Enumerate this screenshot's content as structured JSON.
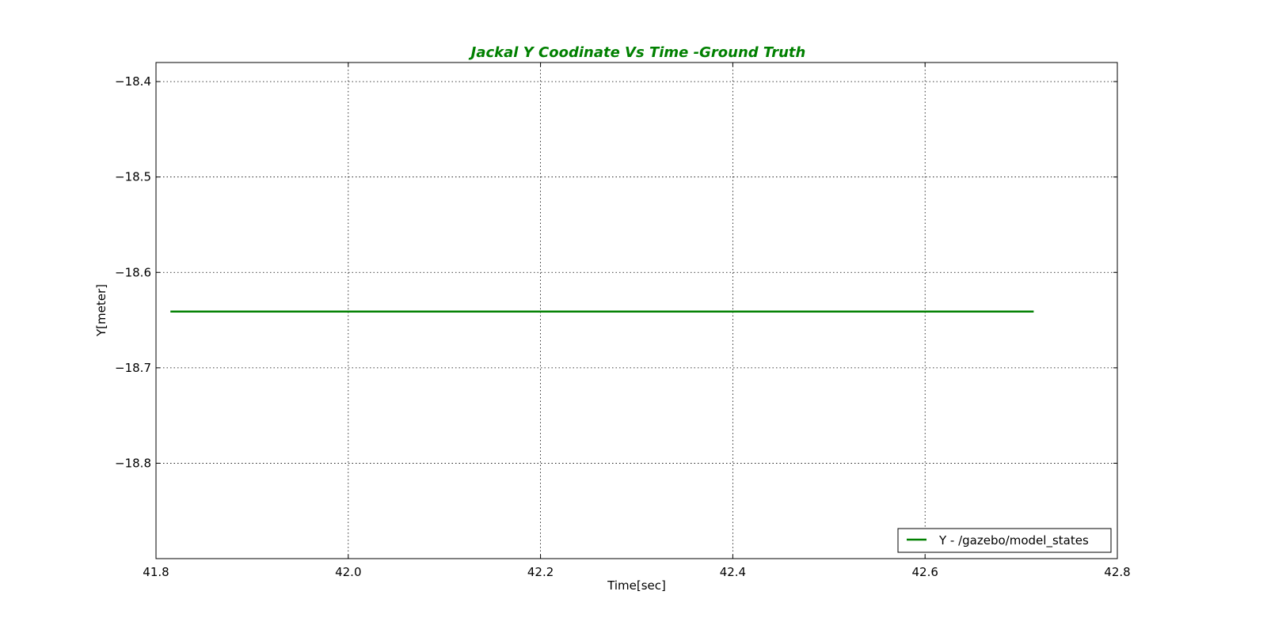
{
  "chart_data": {
    "type": "line",
    "title": "Jackal Y Coodinate Vs Time -Ground Truth",
    "xlabel": "Time[sec]",
    "ylabel": "Y[meter]",
    "xlim": [
      41.8,
      42.8
    ],
    "ylim": [
      -18.9,
      -18.38
    ],
    "xticks": [
      41.8,
      42.0,
      42.2,
      42.4,
      42.6,
      42.8
    ],
    "xtick_labels": [
      "41.8",
      "42.0",
      "42.2",
      "42.4",
      "42.6",
      "42.8"
    ],
    "yticks": [
      -18.4,
      -18.5,
      -18.6,
      -18.7,
      -18.8
    ],
    "ytick_labels": [
      "−18.4",
      "−18.5",
      "−18.6",
      "−18.7",
      "−18.8"
    ],
    "grid": true,
    "legend_position": "lower-right",
    "series": [
      {
        "name": "Y -  /gazebo/model_states",
        "color": "#008000",
        "x": [
          41.815,
          42.713
        ],
        "y": [
          -18.641,
          -18.641
        ]
      }
    ]
  },
  "colors": {
    "title": "#008000",
    "line": "#008000"
  }
}
